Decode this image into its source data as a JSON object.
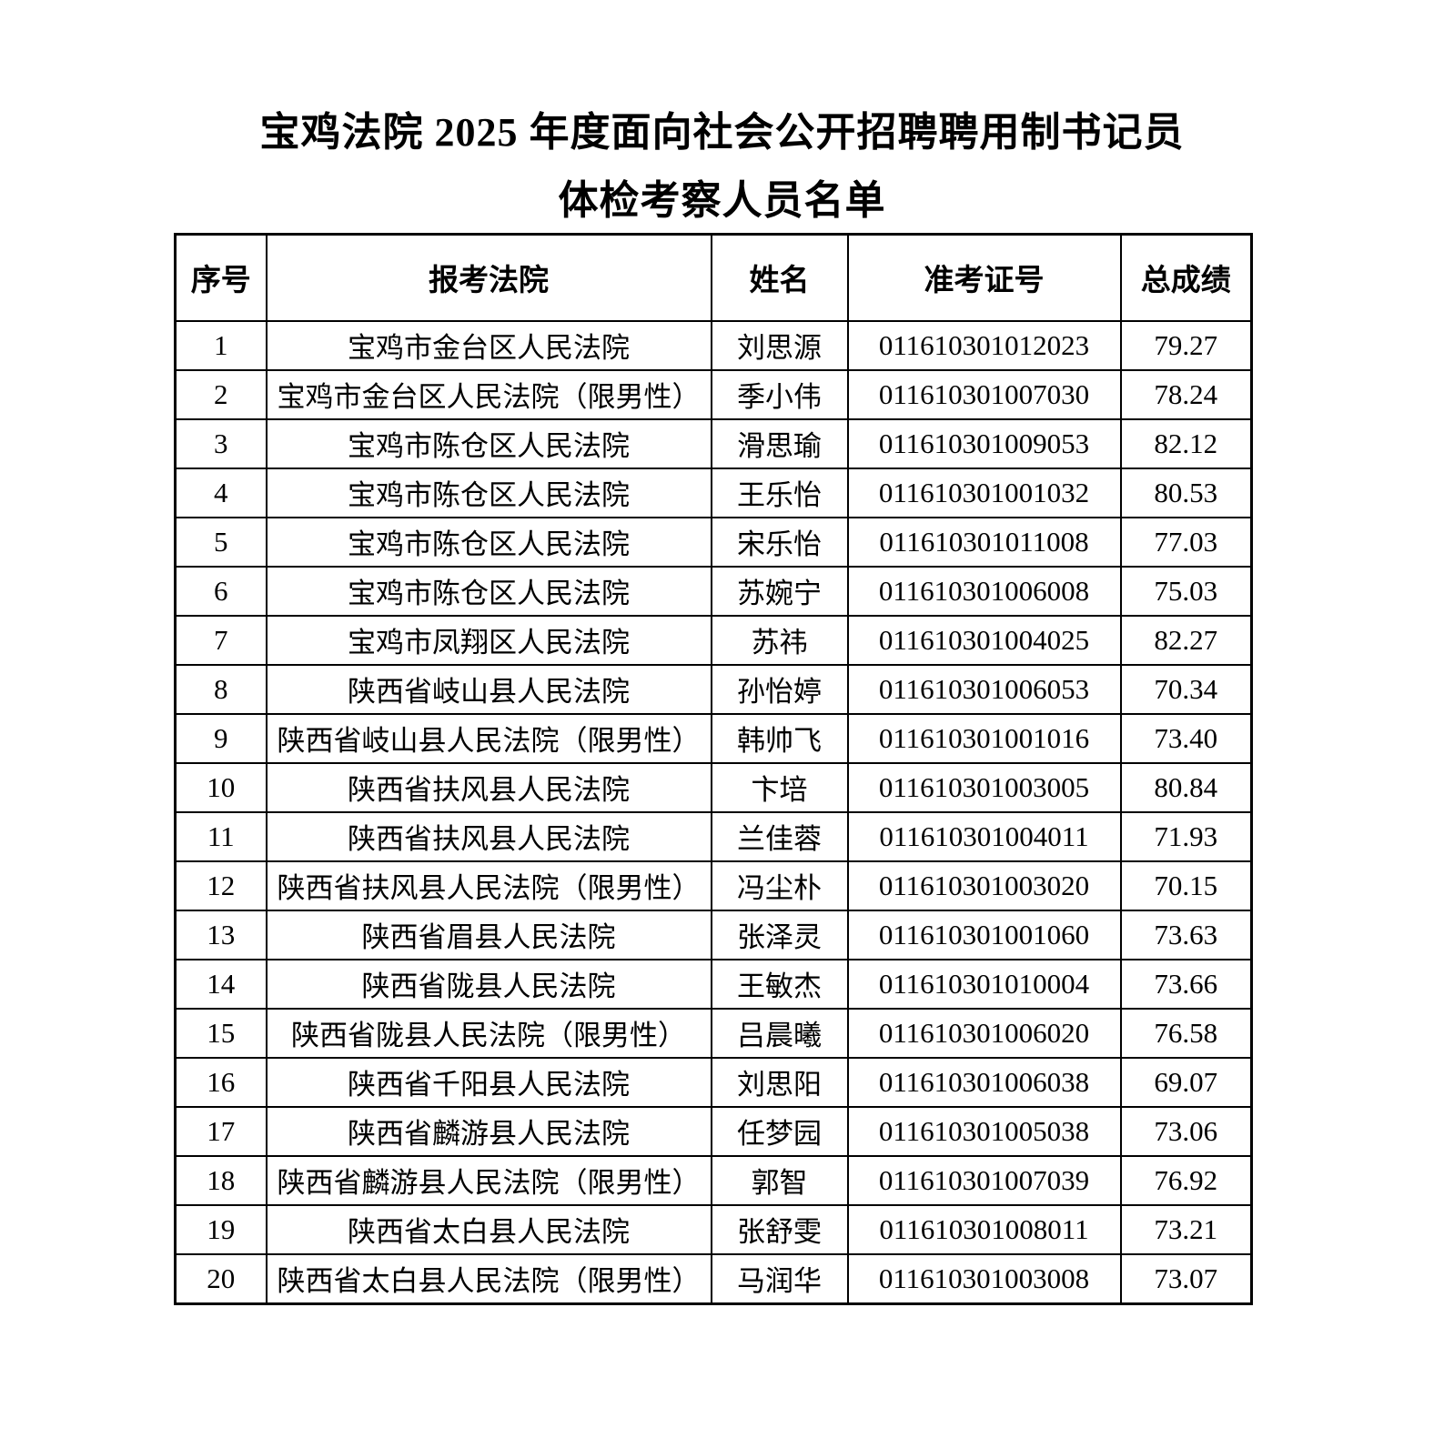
{
  "document": {
    "title_line1": "宝鸡法院 2025 年度面向社会公开招聘聘用制书记员",
    "title_line2": "体检考察人员名单"
  },
  "table": {
    "columns": [
      "序号",
      "报考法院",
      "姓名",
      "准考证号",
      "总成绩"
    ],
    "rows": [
      {
        "no": "1",
        "court": "宝鸡市金台区人民法院",
        "name": "刘思源",
        "ticket": "011610301012023",
        "score": "79.27"
      },
      {
        "no": "2",
        "court": "宝鸡市金台区人民法院（限男性）",
        "name": "季小伟",
        "ticket": "011610301007030",
        "score": "78.24"
      },
      {
        "no": "3",
        "court": "宝鸡市陈仓区人民法院",
        "name": "滑思瑜",
        "ticket": "011610301009053",
        "score": "82.12"
      },
      {
        "no": "4",
        "court": "宝鸡市陈仓区人民法院",
        "name": "王乐怡",
        "ticket": "011610301001032",
        "score": "80.53"
      },
      {
        "no": "5",
        "court": "宝鸡市陈仓区人民法院",
        "name": "宋乐怡",
        "ticket": "011610301011008",
        "score": "77.03"
      },
      {
        "no": "6",
        "court": "宝鸡市陈仓区人民法院",
        "name": "苏婉宁",
        "ticket": "011610301006008",
        "score": "75.03"
      },
      {
        "no": "7",
        "court": "宝鸡市凤翔区人民法院",
        "name": "苏祎",
        "ticket": "011610301004025",
        "score": "82.27"
      },
      {
        "no": "8",
        "court": "陕西省岐山县人民法院",
        "name": "孙怡婷",
        "ticket": "011610301006053",
        "score": "70.34"
      },
      {
        "no": "9",
        "court": "陕西省岐山县人民法院（限男性）",
        "name": "韩帅飞",
        "ticket": "011610301001016",
        "score": "73.40"
      },
      {
        "no": "10",
        "court": "陕西省扶风县人民法院",
        "name": "卞培",
        "ticket": "011610301003005",
        "score": "80.84"
      },
      {
        "no": "11",
        "court": "陕西省扶风县人民法院",
        "name": "兰佳蓉",
        "ticket": "011610301004011",
        "score": "71.93"
      },
      {
        "no": "12",
        "court": "陕西省扶风县人民法院（限男性）",
        "name": "冯尘朴",
        "ticket": "011610301003020",
        "score": "70.15"
      },
      {
        "no": "13",
        "court": "陕西省眉县人民法院",
        "name": "张泽灵",
        "ticket": "011610301001060",
        "score": "73.63"
      },
      {
        "no": "14",
        "court": "陕西省陇县人民法院",
        "name": "王敏杰",
        "ticket": "011610301010004",
        "score": "73.66"
      },
      {
        "no": "15",
        "court": "陕西省陇县人民法院（限男性）",
        "name": "吕晨曦",
        "ticket": "011610301006020",
        "score": "76.58"
      },
      {
        "no": "16",
        "court": "陕西省千阳县人民法院",
        "name": "刘思阳",
        "ticket": "011610301006038",
        "score": "69.07"
      },
      {
        "no": "17",
        "court": "陕西省麟游县人民法院",
        "name": "任梦园",
        "ticket": "011610301005038",
        "score": "73.06"
      },
      {
        "no": "18",
        "court": "陕西省麟游县人民法院（限男性）",
        "name": "郭智",
        "ticket": "011610301007039",
        "score": "76.92"
      },
      {
        "no": "19",
        "court": "陕西省太白县人民法院",
        "name": "张舒雯",
        "ticket": "011610301008011",
        "score": "73.21"
      },
      {
        "no": "20",
        "court": "陕西省太白县人民法院（限男性）",
        "name": "马润华",
        "ticket": "011610301003008",
        "score": "73.07"
      }
    ]
  }
}
